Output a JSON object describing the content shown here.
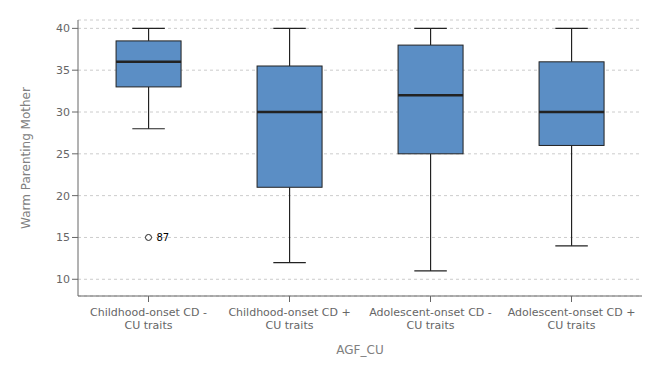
{
  "chart_data": {
    "type": "box",
    "categories": [
      "Childhood-onset CD -\nCU traits",
      "Childhood-onset CD +\nCU traits",
      "Adolescent-onset CD -\nCU traits",
      "Adolescent-onset CD +\nCU traits"
    ],
    "boxes": [
      {
        "q1": 33.0,
        "median": 36.0,
        "q3": 38.5,
        "whislo": 28.0,
        "whishi": 40.0,
        "fliers": [
          15.0
        ]
      },
      {
        "q1": 21.0,
        "median": 30.0,
        "q3": 35.5,
        "whislo": 12.0,
        "whishi": 40.0,
        "fliers": []
      },
      {
        "q1": 25.0,
        "median": 32.0,
        "q3": 38.0,
        "whislo": 11.0,
        "whishi": 40.0,
        "fliers": []
      },
      {
        "q1": 26.0,
        "median": 30.0,
        "q3": 36.0,
        "whislo": 14.0,
        "whishi": 40.0,
        "fliers": []
      }
    ],
    "annotations": [
      {
        "text": "87",
        "category": "Childhood-onset CD -\nCU traits",
        "y": 15.0
      }
    ],
    "x_label": "AGF_CU",
    "y_label": "Warm Parenting Mother",
    "ylim": [
      8,
      41
    ],
    "yticks": [
      10,
      15,
      20,
      25,
      30,
      35,
      40
    ],
    "color": "#5B8EC5",
    "grid": true
  }
}
